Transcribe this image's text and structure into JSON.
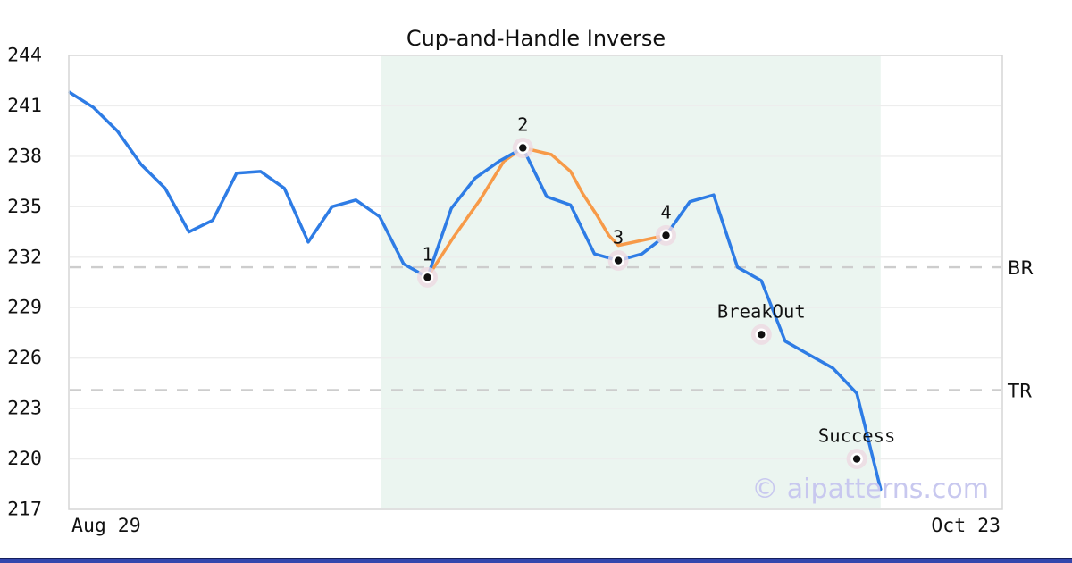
{
  "chart_data": {
    "type": "line",
    "title": "Cup-and-Handle Inverse",
    "x_axis": {
      "start_label": "Aug 29",
      "end_label": "Oct 23"
    },
    "y_axis": {
      "min": 217,
      "max": 244,
      "ticks": [
        217,
        220,
        223,
        226,
        229,
        232,
        235,
        238,
        241,
        244
      ]
    },
    "price_series": {
      "name": "price",
      "values": [
        241.8,
        240.9,
        239.5,
        237.5,
        236.1,
        233.5,
        234.2,
        237.0,
        237.1,
        236.1,
        232.9,
        235.0,
        235.4,
        234.4,
        231.6,
        230.8,
        234.9,
        236.7,
        237.7,
        238.5,
        235.6,
        235.1,
        232.2,
        231.8,
        232.2,
        233.3,
        235.3,
        235.7,
        231.4,
        230.6,
        227.0,
        226.2,
        225.4,
        223.9,
        218.2
      ]
    },
    "pattern_overlay": {
      "name": "cup-and-handle-inverse-outline",
      "points": [
        [
          15,
          230.8
        ],
        [
          16.1,
          233.2
        ],
        [
          17.2,
          235.4
        ],
        [
          18.2,
          237.7
        ],
        [
          19,
          238.5
        ],
        [
          20.2,
          238.1
        ],
        [
          21.0,
          237.1
        ],
        [
          21.5,
          235.8
        ],
        [
          22.1,
          234.5
        ],
        [
          22.6,
          233.3
        ],
        [
          23.0,
          232.7
        ],
        [
          25,
          233.3
        ]
      ]
    },
    "markers": [
      {
        "label": "1",
        "index": 15,
        "value": 230.8
      },
      {
        "label": "2",
        "index": 19,
        "value": 238.5
      },
      {
        "label": "3",
        "index": 23,
        "value": 231.8
      },
      {
        "label": "4",
        "index": 25,
        "value": 233.3
      },
      {
        "label": "BreakOut",
        "index": 29,
        "value": 227.4
      },
      {
        "label": "Success",
        "index": 33,
        "value": 220.0
      }
    ],
    "levels": [
      {
        "label": "BR",
        "value": 231.4
      },
      {
        "label": "TR",
        "value": 224.1
      }
    ],
    "pattern_region": {
      "from_index": 13.07,
      "to_index": 34
    },
    "grid": true,
    "legend": "none",
    "watermark": "© aipatterns.com"
  },
  "colors": {
    "price_line": "#2e7ce5",
    "pattern_line": "#f79a48",
    "region_fill": "#ebf5f0",
    "marker_halo": "#eed9e2",
    "marker_ring": "#ffffff",
    "marker_dot": "#111111",
    "level_line": "#cdcdcd",
    "grid_line": "#ededed",
    "plot_border": "#d6d6d6",
    "watermark": "#c8c8ef",
    "label_text": "#111111",
    "accent_bar": "#3347ad"
  }
}
